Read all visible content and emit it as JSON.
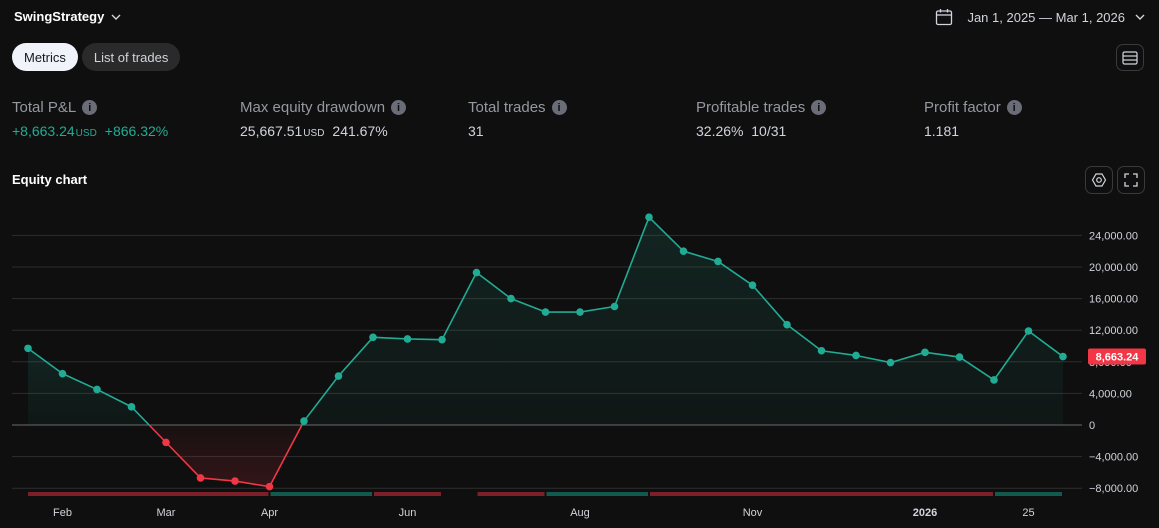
{
  "header": {
    "strategy_name": "SwingStrategy",
    "date_range": "Jan 1, 2025 — Mar 1, 2026"
  },
  "tabs": [
    {
      "label": "Metrics",
      "active": true
    },
    {
      "label": "List of trades",
      "active": false
    }
  ],
  "metrics": {
    "total_pnl": {
      "label": "Total P&L",
      "value": "+8,663.24",
      "unit": "USD",
      "percent": "+866.32%"
    },
    "max_drawdown": {
      "label": "Max equity drawdown",
      "value": "25,667.51",
      "unit": "USD",
      "percent": "241.67%"
    },
    "total_trades": {
      "label": "Total trades",
      "value": "31"
    },
    "profitable_trades": {
      "label": "Profitable trades",
      "value": "32.26%  10/31"
    },
    "profit_factor": {
      "label": "Profit factor",
      "value": "1.181"
    }
  },
  "chart_title": "Equity chart",
  "colors": {
    "positive": "#22ab94",
    "negative": "#f23645",
    "grid": "#2e2e2e",
    "zero_line": "#6b6b6b",
    "background": "#0f0f0f"
  },
  "icons": [
    "chevron-down-icon",
    "calendar-icon",
    "menu-icon",
    "info-icon",
    "settings-icon",
    "expand-icon"
  ],
  "chart_data": {
    "type": "line",
    "title": "Equity chart",
    "xlabel": "",
    "ylabel": "",
    "ylim": [
      -8000,
      26000
    ],
    "y_ticks": [
      -8000,
      -4000,
      0,
      4000,
      8000,
      12000,
      16000,
      20000,
      24000
    ],
    "y_tick_labels": [
      "−8,000.00",
      "−4,000.00",
      "0",
      "4,000.00",
      "8,000.00",
      "12,000.00",
      "16,000.00",
      "20,000.00",
      "24,000.00"
    ],
    "x_tick_labels": [
      {
        "label": "Feb",
        "index": 1
      },
      {
        "label": "Mar",
        "index": 4
      },
      {
        "label": "Apr",
        "index": 7
      },
      {
        "label": "Jun",
        "index": 11
      },
      {
        "label": "Aug",
        "index": 16
      },
      {
        "label": "Nov",
        "index": 21
      },
      {
        "label": "2026",
        "index": 26,
        "bold": true
      },
      {
        "label": "25",
        "index": 29
      }
    ],
    "grid": true,
    "last_value_label": "8,663.24",
    "series": [
      {
        "values": [
          9700,
          6500,
          4500,
          2300,
          -2200,
          -6700,
          -7100,
          -7800,
          500,
          6200,
          11100,
          10900,
          10800,
          19300,
          16000,
          14300,
          14300,
          15000,
          26300,
          22000,
          20700,
          17700,
          12700,
          9400,
          8800,
          7900,
          9200,
          8600,
          5700,
          11900,
          8663.24
        ]
      }
    ],
    "trade_bars": [
      {
        "from": 0,
        "to": 7,
        "result": "loss"
      },
      {
        "from": 7,
        "to": 10,
        "result": "win"
      },
      {
        "from": 10,
        "to": 12,
        "result": "loss"
      },
      {
        "from": 13,
        "to": 15,
        "result": "loss"
      },
      {
        "from": 15,
        "to": 18,
        "result": "win"
      },
      {
        "from": 18,
        "to": 28,
        "result": "loss"
      },
      {
        "from": 28,
        "to": 30,
        "result": "win"
      }
    ]
  }
}
